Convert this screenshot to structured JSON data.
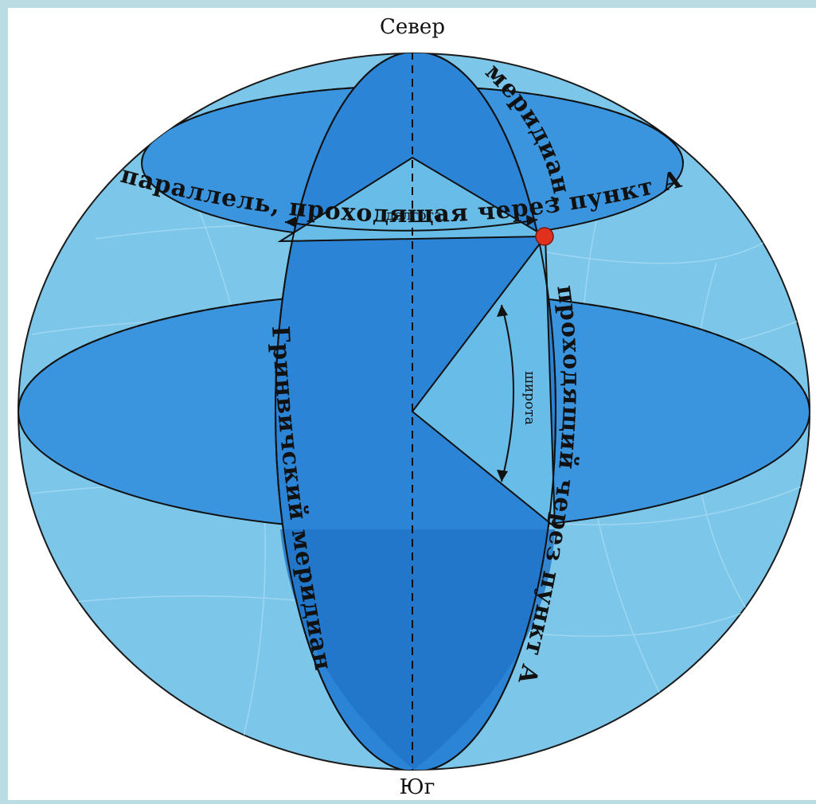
{
  "labels": {
    "north": "Север",
    "south": "Юг",
    "parallel": "параллель, проходящая через пункт А",
    "meridian_top": "меридиан,",
    "meridian_side": "проходящий через пункт А",
    "greenwich": "Гринвичский меридиан",
    "longitude": "долгота",
    "latitude": "широта"
  },
  "colors": {
    "frame": "#b9dde2",
    "globe": "#7cc6ea",
    "sector": "#2b84d6",
    "dark_blue": "#1f6fc4",
    "point": "#e0301e"
  }
}
